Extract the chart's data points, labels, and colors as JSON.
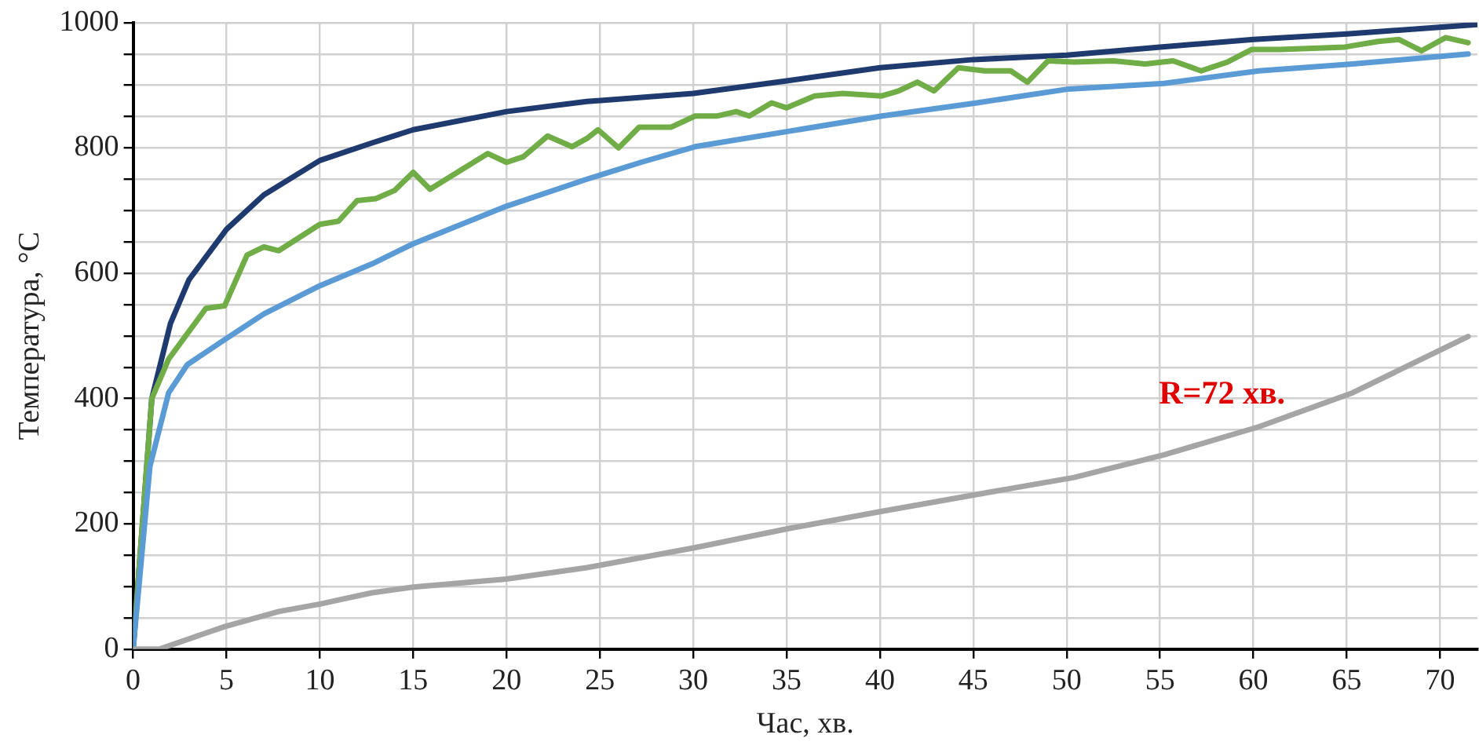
{
  "chart_data": {
    "type": "line",
    "xlabel": "Час, хв.",
    "ylabel": "Температура, °С",
    "xlim": [
      0,
      72
    ],
    "xticks": [
      0,
      5,
      10,
      15,
      20,
      25,
      30,
      35,
      40,
      45,
      50,
      55,
      60,
      65,
      70
    ],
    "ylim": [
      0,
      1000
    ],
    "yticks": [
      0,
      {
        "value": 50,
        "label": null
      },
      {
        "value": 100,
        "label": null
      },
      {
        "value": 150,
        "label": null
      },
      200,
      {
        "value": 250,
        "label": null
      },
      {
        "value": 300,
        "label": null
      },
      {
        "value": 350,
        "label": null
      },
      400,
      {
        "value": 450,
        "label": null
      },
      {
        "value": 500,
        "label": null
      },
      {
        "value": 550,
        "label": null
      },
      600,
      {
        "value": 650,
        "label": null
      },
      {
        "value": 700,
        "label": null
      },
      {
        "value": 750,
        "label": null
      },
      800,
      {
        "value": 850,
        "label": null
      },
      {
        "value": 900,
        "label": null
      },
      {
        "value": 950,
        "label": null
      },
      1000
    ],
    "grid": true,
    "legend": false,
    "marker": "none",
    "line_style": "solid",
    "annotations": [
      "R=72 хв."
    ],
    "series": [
      {
        "color": "#1f3a6e",
        "x": [
          0,
          1,
          2,
          3,
          5,
          7,
          10,
          12.8,
          15,
          20,
          24.3,
          30,
          35,
          40,
          45,
          50,
          55,
          60,
          65,
          72
        ],
        "values": [
          0,
          400,
          520,
          590,
          670,
          725,
          780,
          808,
          829,
          858,
          874,
          887,
          907,
          928,
          941,
          948,
          961,
          973,
          982,
          997
        ]
      },
      {
        "color": "#70ad47",
        "x": [
          0,
          1,
          1.9,
          3.9,
          4.9,
          6.1,
          7,
          7.8,
          10,
          11,
          12,
          13,
          14,
          15,
          15.9,
          19,
          20,
          20.9,
          22.2,
          23.5,
          24.3,
          24.9,
          26,
          27.1,
          28.8,
          30.1,
          31.3,
          32.3,
          33,
          34.2,
          35,
          36.5,
          38,
          40.1,
          41,
          42,
          42.9,
          44.2,
          45.6,
          47,
          47.9,
          49,
          50.4,
          52.5,
          54.2,
          55.7,
          57.2,
          58.6,
          59.9,
          61.4,
          63.2,
          64.9,
          66.7,
          67.8,
          69,
          70.3,
          71.5
        ],
        "values": [
          0,
          400,
          463,
          544,
          548,
          629,
          642,
          636,
          678,
          683,
          716,
          719,
          732,
          761,
          734,
          791,
          777,
          786,
          819,
          802,
          815,
          829,
          800,
          833,
          833,
          851,
          851,
          858,
          851,
          872,
          864,
          883,
          887,
          883,
          891,
          905,
          891,
          928,
          923,
          923,
          905,
          939,
          937,
          939,
          934,
          939,
          923,
          937,
          957,
          957,
          959,
          961,
          970,
          973,
          955,
          976,
          968
        ]
      },
      {
        "color": "#5b9bd5",
        "x": [
          0,
          0.9,
          1.9,
          2.9,
          4.9,
          7,
          10,
          12.8,
          15,
          20,
          24.3,
          27.2,
          30.1,
          35.2,
          40.1,
          45.2,
          50.1,
          55.2,
          60.3,
          65.3,
          71.5
        ],
        "values": [
          0,
          292,
          409,
          454,
          494,
          535,
          580,
          615,
          647,
          707,
          750,
          777,
          802,
          827,
          851,
          872,
          894,
          903,
          923,
          934,
          950
        ]
      },
      {
        "color": "#a5a5a5",
        "x": [
          0,
          1.4,
          4.9,
          7.8,
          10,
          12.8,
          15,
          20,
          24.3,
          30.1,
          35.2,
          40.1,
          45.2,
          50.4,
          55.2,
          60.3,
          65.3,
          71.5
        ],
        "values": [
          0,
          0,
          36,
          60,
          72,
          90,
          99,
          112,
          130,
          162,
          193,
          220,
          247,
          274,
          310,
          355,
          409,
          499
        ]
      }
    ]
  }
}
